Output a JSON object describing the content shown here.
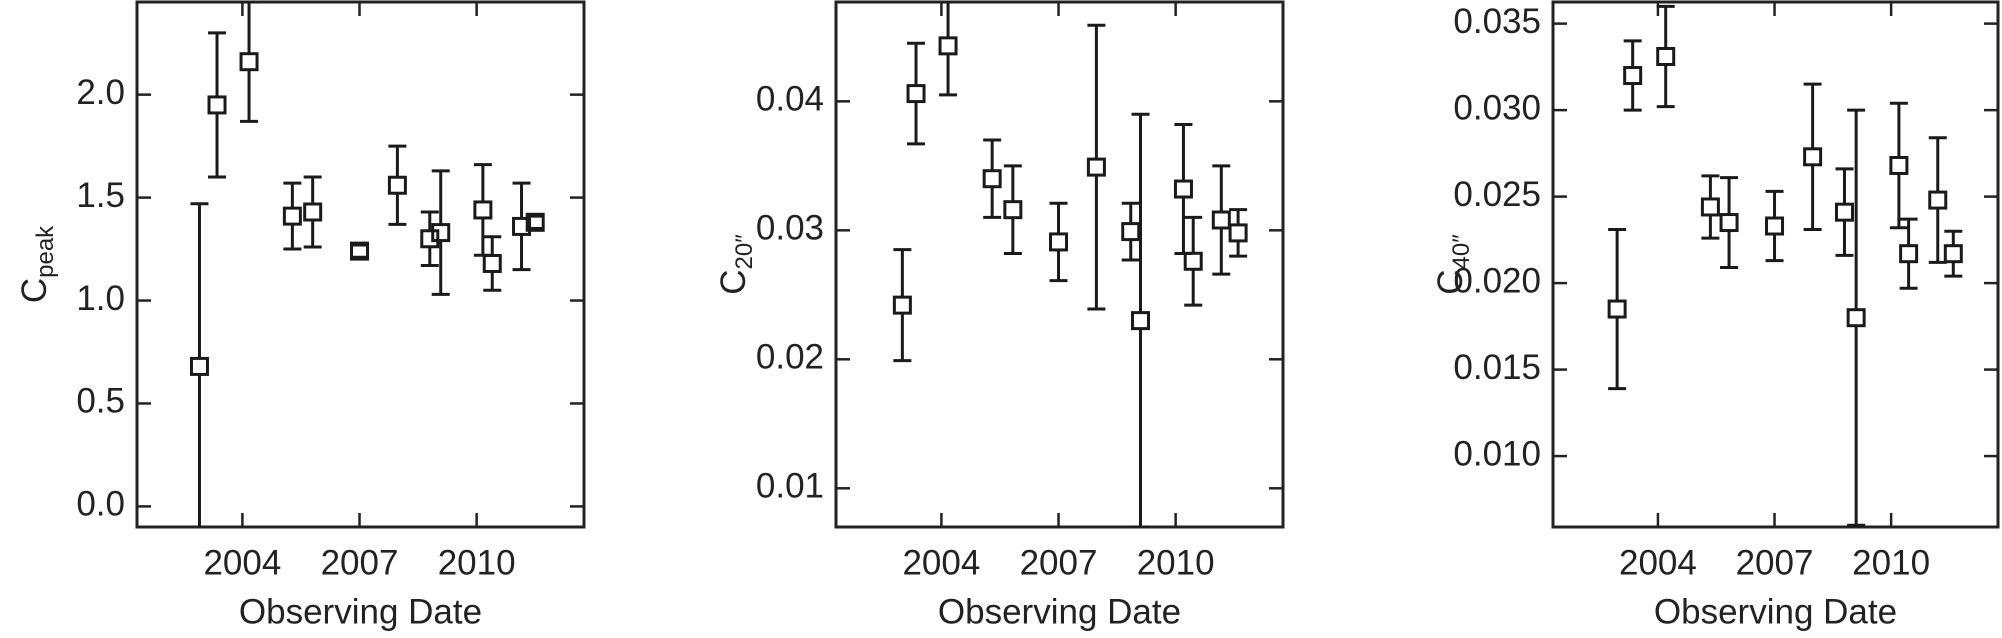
{
  "chart_data": [
    {
      "type": "errorbar",
      "ylabel": "C",
      "ylabel_sub": "peak",
      "xlabel": "Observing Date",
      "x": [
        2002.9,
        2003.35,
        2004.17,
        2005.28,
        2005.8,
        2007.0,
        2007.97,
        2008.8,
        2009.08,
        2010.16,
        2010.4,
        2011.15,
        2011.5
      ],
      "values": [
        0.68,
        1.95,
        2.16,
        1.41,
        1.43,
        1.24,
        1.56,
        1.3,
        1.33,
        1.44,
        1.18,
        1.36,
        1.38
      ],
      "errors": [
        0.79,
        0.35,
        0.29,
        0.16,
        0.17,
        0.03,
        0.19,
        0.13,
        0.3,
        0.22,
        0.13,
        0.21,
        0.03
      ],
      "color": "#1a1a1a",
      "xlim": [
        2001.3,
        2012.75
      ],
      "xticks": [
        2004,
        2007,
        2010
      ],
      "ylim": [
        -0.1,
        2.45
      ],
      "yticks": [
        {
          "value": 0,
          "label": "0.0"
        },
        0.5,
        {
          "value": 1,
          "label": "1.0"
        },
        1.5,
        {
          "value": 2,
          "label": "2.0"
        }
      ]
    },
    {
      "type": "errorbar",
      "ylabel": "C",
      "ylabel_sub": "20″",
      "xlabel": "Observing Date",
      "x": [
        2003.0,
        2003.35,
        2004.17,
        2005.3,
        2005.83,
        2007.0,
        2007.97,
        2008.85,
        2009.1,
        2010.2,
        2010.45,
        2011.17,
        2011.6
      ],
      "values": [
        0.0242,
        0.0406,
        0.0443,
        0.034,
        0.0316,
        0.0291,
        0.0349,
        0.0299,
        0.023,
        0.0332,
        0.0276,
        0.0308,
        0.0298
      ],
      "errors": [
        0.0043,
        0.0039,
        0.0038,
        0.003,
        0.0034,
        0.003,
        0.011,
        0.0022,
        0.016,
        0.005,
        0.0034,
        0.0042,
        0.0018
      ],
      "color": "#1a1a1a",
      "xlim": [
        2001.3,
        2012.75
      ],
      "xticks": [
        2004,
        2007,
        2010
      ],
      "ylim": [
        0.007,
        0.0477
      ],
      "yticks": [
        0.01,
        0.02,
        0.03,
        0.04
      ]
    },
    {
      "type": "errorbar",
      "ylabel": "C",
      "ylabel_sub": "40″",
      "xlabel": "Observing Date",
      "x": [
        2002.95,
        2003.35,
        2004.2,
        2005.35,
        2005.83,
        2007.0,
        2007.98,
        2008.8,
        2009.1,
        2010.2,
        2010.45,
        2011.2,
        2011.6
      ],
      "values": [
        0.0185,
        0.032,
        0.0331,
        0.0244,
        0.0235,
        0.0233,
        0.0273,
        0.0241,
        0.018,
        0.0268,
        0.0217,
        0.0248,
        0.0217
      ],
      "errors": [
        0.0046,
        0.002,
        0.0029,
        0.0018,
        0.0026,
        0.002,
        0.0042,
        0.0025,
        0.012,
        0.0036,
        0.002,
        0.0036,
        0.0013
      ],
      "color": "#1a1a1a",
      "xlim": [
        2001.3,
        2012.75
      ],
      "xticks": [
        2004,
        2007,
        2010
      ],
      "ylim": [
        0.0059,
        0.03625
      ],
      "yticks": [
        {
          "value": 0.01,
          "label": "0.010"
        },
        0.015,
        {
          "value": 0.02,
          "label": "0.020"
        },
        0.025,
        {
          "value": 0.03,
          "label": "0.030"
        },
        0.035
      ]
    }
  ]
}
